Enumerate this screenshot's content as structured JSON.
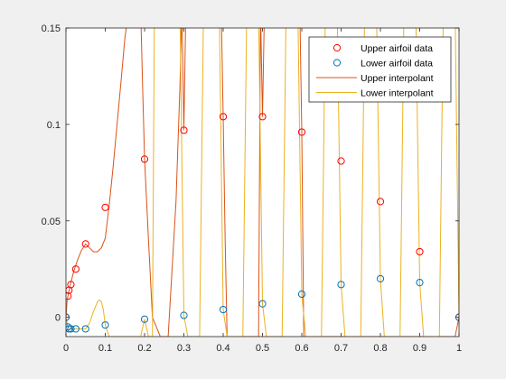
{
  "chart_data": {
    "type": "scatter",
    "title": "",
    "xlabel": "",
    "ylabel": "",
    "xlim": [
      0,
      1
    ],
    "ylim": [
      -0.01,
      0.15
    ],
    "xticks": [
      0,
      0.1,
      0.2,
      0.3,
      0.4,
      0.5,
      0.6,
      0.7,
      0.8,
      0.9,
      1
    ],
    "xtick_labels": [
      "0",
      "0.1",
      "0.2",
      "0.3",
      "0.4",
      "0.5",
      "0.6",
      "0.7",
      "0.8",
      "0.9",
      "1"
    ],
    "yticks": [
      0,
      0.05,
      0.1,
      0.15
    ],
    "ytick_labels": [
      "0",
      "0.05",
      "0.1",
      "0.15"
    ],
    "grid": false,
    "legend_position": "top-right",
    "series": [
      {
        "name": "Upper airfoil data",
        "kind": "markers",
        "color": "#ff0000",
        "x": [
          0,
          0.005,
          0.0075,
          0.0125,
          0.025,
          0.05,
          0.1,
          0.2,
          0.3,
          0.4,
          0.5,
          0.6,
          0.7,
          0.8,
          0.9,
          1.0
        ],
        "y": [
          0,
          0.011,
          0.014,
          0.017,
          0.025,
          0.038,
          0.057,
          0.082,
          0.097,
          0.104,
          0.104,
          0.096,
          0.081,
          0.06,
          0.034,
          0
        ]
      },
      {
        "name": "Lower airfoil data",
        "kind": "markers",
        "color": "#0072bd",
        "x": [
          0,
          0.005,
          0.0075,
          0.0125,
          0.025,
          0.05,
          0.1,
          0.2,
          0.3,
          0.4,
          0.5,
          0.6,
          0.7,
          0.8,
          0.9,
          1.0
        ],
        "y": [
          0,
          -0.005,
          -0.006,
          -0.006,
          -0.006,
          -0.006,
          -0.004,
          -0.001,
          0.001,
          0.004,
          0.007,
          0.012,
          0.017,
          0.02,
          0.018,
          0
        ]
      },
      {
        "name": "Upper interpolant",
        "kind": "line",
        "color": "#d95319",
        "x": [
          0,
          0.003,
          0.006,
          0.01,
          0.015,
          0.02,
          0.03,
          0.04,
          0.05,
          0.06,
          0.07,
          0.08,
          0.09,
          0.1,
          0.11,
          0.12,
          0.13,
          0.14,
          0.15,
          0.16,
          0.17,
          0.18,
          0.19,
          0.195,
          0.2,
          0.21,
          0.22,
          0.24,
          0.26,
          0.28,
          0.29,
          0.295,
          0.3,
          0.305,
          0.31,
          0.33,
          0.35,
          0.37,
          0.39,
          0.395,
          0.4,
          0.405,
          0.41,
          0.43,
          0.45,
          0.47,
          0.49,
          0.495,
          0.5,
          0.505,
          0.51,
          0.53,
          0.55,
          0.57,
          0.59,
          0.595,
          0.6,
          0.605,
          0.61,
          0.7,
          0.8,
          0.9,
          0.95,
          0.99,
          1.0
        ],
        "y": [
          0,
          0.009,
          0.012,
          0.016,
          0.02,
          0.024,
          0.03,
          0.035,
          0.038,
          0.036,
          0.034,
          0.034,
          0.036,
          0.041,
          0.058,
          0.078,
          0.1,
          0.122,
          0.145,
          0.16,
          0.16,
          0.16,
          0.16,
          0.12,
          0.082,
          0.04,
          0.0,
          -0.01,
          -0.01,
          0.06,
          0.12,
          0.16,
          0.097,
          0.16,
          0.16,
          0.16,
          0.16,
          0.16,
          0.16,
          0.16,
          0.104,
          0.04,
          -0.01,
          -0.01,
          -0.01,
          -0.01,
          -0.01,
          0.16,
          0.104,
          0.16,
          0.16,
          0.16,
          0.16,
          0.16,
          0.16,
          0.16,
          0.096,
          -0.01,
          -0.01,
          -0.01,
          -0.01,
          -0.01,
          -0.01,
          -0.01,
          0.0
        ]
      },
      {
        "name": "Lower interpolant",
        "kind": "line",
        "color": "#edb120",
        "x": [
          0,
          0.005,
          0.01,
          0.02,
          0.03,
          0.04,
          0.05,
          0.06,
          0.07,
          0.08,
          0.085,
          0.09,
          0.095,
          0.1,
          0.11,
          0.12,
          0.13,
          0.14,
          0.15,
          0.16,
          0.17,
          0.18,
          0.19,
          0.2,
          0.21,
          0.22,
          0.225,
          0.23,
          0.24,
          0.25,
          0.26,
          0.27,
          0.28,
          0.29,
          0.3,
          0.31,
          0.32,
          0.33,
          0.34,
          0.35,
          0.36,
          0.37,
          0.38,
          0.39,
          0.4,
          0.41,
          0.42,
          0.43,
          0.44,
          0.45,
          0.46,
          0.47,
          0.48,
          0.49,
          0.5,
          0.51,
          0.52,
          0.53,
          0.54,
          0.55,
          0.56,
          0.57,
          0.58,
          0.59,
          0.6,
          0.61,
          0.62,
          0.63,
          0.64,
          0.65,
          0.66,
          0.67,
          0.68,
          0.69,
          0.7,
          0.71,
          0.72,
          0.73,
          0.74,
          0.75,
          0.76,
          0.77,
          0.78,
          0.79,
          0.8,
          0.81,
          0.82,
          0.83,
          0.84,
          0.85,
          0.86,
          0.87,
          0.88,
          0.89,
          0.9,
          0.91,
          0.92,
          0.93,
          0.94,
          0.95,
          0.96,
          0.97,
          0.98,
          0.99,
          1.0
        ],
        "y": [
          0,
          -0.005,
          -0.006,
          -0.006,
          -0.006,
          -0.006,
          -0.006,
          -0.003,
          0.003,
          0.008,
          0.009,
          0.008,
          0.004,
          -0.004,
          -0.01,
          -0.01,
          -0.01,
          -0.01,
          -0.01,
          -0.01,
          -0.01,
          -0.01,
          -0.01,
          -0.001,
          -0.01,
          -0.01,
          0.16,
          0.16,
          0.16,
          0.16,
          0.16,
          0.16,
          0.16,
          0.16,
          0.001,
          -0.01,
          -0.01,
          -0.01,
          -0.01,
          0.16,
          0.16,
          0.16,
          0.16,
          0.16,
          0.004,
          -0.01,
          -0.01,
          -0.01,
          -0.01,
          -0.01,
          0.16,
          0.16,
          0.16,
          0.16,
          0.007,
          -0.01,
          -0.01,
          -0.01,
          -0.01,
          -0.01,
          0.16,
          0.16,
          0.16,
          0.16,
          0.012,
          -0.01,
          -0.01,
          -0.01,
          -0.01,
          -0.01,
          0.16,
          0.16,
          0.16,
          0.16,
          0.017,
          -0.01,
          -0.01,
          -0.01,
          -0.01,
          -0.01,
          0.16,
          0.16,
          0.16,
          0.16,
          0.02,
          -0.01,
          -0.01,
          -0.01,
          -0.01,
          -0.01,
          0.16,
          0.16,
          0.16,
          0.16,
          0.018,
          -0.01,
          -0.01,
          -0.01,
          -0.01,
          -0.01,
          0.16,
          0.16,
          0.16,
          0.16,
          0.0
        ]
      }
    ]
  }
}
